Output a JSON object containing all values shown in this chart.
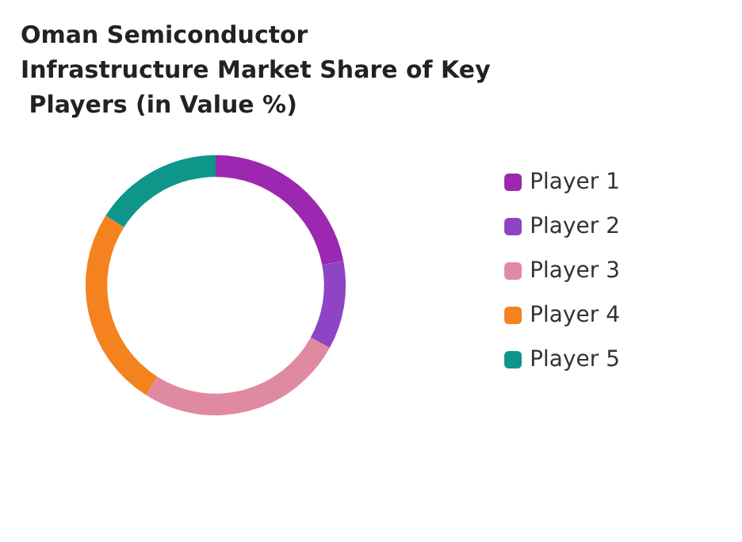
{
  "chart_data": {
    "type": "donut",
    "title": "Oman Semiconductor Infrastructure Market Share of Key Players (in Value %)",
    "categories": [
      "Player 1",
      "Player 2",
      "Player 3",
      "Player 4",
      "Player 5"
    ],
    "values": [
      22,
      11,
      26,
      25,
      16
    ],
    "colors": [
      "#9c27b0",
      "#8e44c4",
      "#e08aa2",
      "#f4821f",
      "#0f968a"
    ],
    "legend": "right"
  }
}
